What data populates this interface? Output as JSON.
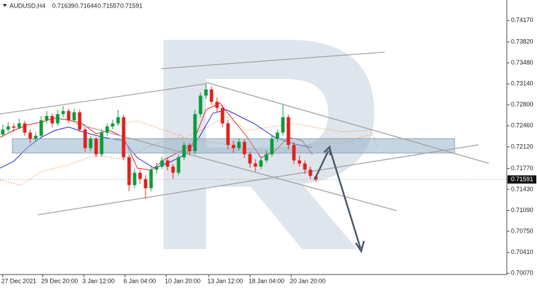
{
  "chart_data": {
    "type": "candlestick",
    "title": "AUDUSD,H4",
    "x": [
      0,
      1,
      2,
      3,
      4,
      5,
      6,
      7,
      8,
      9,
      10,
      11,
      12,
      13,
      14,
      15,
      16,
      17,
      18,
      19,
      20,
      21,
      22,
      23,
      24,
      25,
      26,
      27,
      28,
      29,
      30,
      31,
      32,
      33,
      34,
      35,
      36,
      37,
      38,
      39,
      40,
      41,
      42,
      43,
      44,
      45,
      46,
      47,
      48,
      49,
      50,
      51,
      52,
      53,
      54,
      55,
      56,
      57
    ],
    "open": [
      0.7232,
      0.724,
      0.7245,
      0.7243,
      0.725,
      0.7235,
      0.7225,
      0.723,
      0.7255,
      0.7262,
      0.725,
      0.7265,
      0.727,
      0.7255,
      0.7268,
      0.724,
      0.721,
      0.7225,
      0.72,
      0.7235,
      0.7245,
      0.725,
      0.726,
      0.7195,
      0.715,
      0.717,
      0.716,
      0.7145,
      0.7175,
      0.718,
      0.719,
      0.718,
      0.717,
      0.7195,
      0.7215,
      0.7205,
      0.7265,
      0.7295,
      0.7305,
      0.7285,
      0.7275,
      0.725,
      0.7215,
      0.721,
      0.722,
      0.72,
      0.7185,
      0.718,
      0.719,
      0.72,
      0.7225,
      0.7235,
      0.726,
      0.7215,
      0.719,
      0.7185,
      0.7175,
      0.71639
    ],
    "high": [
      0.7248,
      0.7252,
      0.725,
      0.7258,
      0.7254,
      0.724,
      0.7236,
      0.7262,
      0.727,
      0.7266,
      0.7272,
      0.7278,
      0.7274,
      0.7274,
      0.7272,
      0.7244,
      0.723,
      0.7228,
      0.724,
      0.725,
      0.7256,
      0.7272,
      0.7264,
      0.72,
      0.7176,
      0.7174,
      0.7166,
      0.718,
      0.7186,
      0.7196,
      0.7194,
      0.7184,
      0.72,
      0.722,
      0.7218,
      0.7272,
      0.73,
      0.7315,
      0.731,
      0.7292,
      0.728,
      0.7256,
      0.7222,
      0.7226,
      0.7224,
      0.7204,
      0.7192,
      0.7196,
      0.7206,
      0.723,
      0.724,
      0.728,
      0.7264,
      0.722,
      0.7198,
      0.719,
      0.718,
      0.71644
    ],
    "low": [
      0.7228,
      0.7236,
      0.7236,
      0.724,
      0.723,
      0.7218,
      0.722,
      0.7226,
      0.725,
      0.7244,
      0.7246,
      0.726,
      0.725,
      0.7252,
      0.7236,
      0.7204,
      0.7205,
      0.7195,
      0.7196,
      0.723,
      0.724,
      0.7246,
      0.719,
      0.714,
      0.7145,
      0.7152,
      0.7128,
      0.714,
      0.7168,
      0.7176,
      0.7174,
      0.716,
      0.7166,
      0.719,
      0.7198,
      0.72,
      0.726,
      0.729,
      0.728,
      0.7268,
      0.7244,
      0.7208,
      0.7202,
      0.7206,
      0.7194,
      0.7178,
      0.7172,
      0.7176,
      0.7186,
      0.7196,
      0.722,
      0.723,
      0.7208,
      0.7184,
      0.718,
      0.7168,
      0.716,
      0.71557
    ],
    "close": [
      0.724,
      0.7245,
      0.7243,
      0.725,
      0.7235,
      0.7225,
      0.723,
      0.7255,
      0.7262,
      0.725,
      0.7265,
      0.727,
      0.7255,
      0.7268,
      0.724,
      0.721,
      0.7225,
      0.72,
      0.7235,
      0.7245,
      0.725,
      0.726,
      0.7195,
      0.715,
      0.717,
      0.716,
      0.7145,
      0.7175,
      0.718,
      0.719,
      0.718,
      0.717,
      0.7195,
      0.7215,
      0.7205,
      0.7265,
      0.7295,
      0.7305,
      0.7285,
      0.7275,
      0.725,
      0.7215,
      0.721,
      0.722,
      0.72,
      0.7185,
      0.718,
      0.719,
      0.72,
      0.7225,
      0.7235,
      0.726,
      0.7215,
      0.719,
      0.7185,
      0.7175,
      0.7165,
      0.71591
    ],
    "up_color": "#0a9b3c",
    "down_color": "#e0201b",
    "xlim": [
      -0.5,
      91.75
    ],
    "xticks": [
      {
        "value": 0,
        "label": "27 Dec 2021"
      },
      {
        "value": 7.25,
        "label": "29 Dec 20:00"
      },
      {
        "value": 14.75,
        "label": "3 Jan 12:00"
      },
      {
        "value": 22.25,
        "label": "6 Jan 04:00"
      },
      {
        "value": 29.75,
        "label": "10 Jan 20:00"
      },
      {
        "value": 37.5,
        "label": "13 Jan 12:00"
      },
      {
        "value": 45,
        "label": "18 Jan 04:00"
      },
      {
        "value": 52.5,
        "label": "20 Jan 20:00"
      }
    ],
    "ylim": [
      0.7005,
      0.745
    ],
    "yticks": [
      {
        "value": 0.7417,
        "label": "0.74170"
      },
      {
        "value": 0.7382,
        "label": "0.73820"
      },
      {
        "value": 0.7348,
        "label": "0.73480"
      },
      {
        "value": 0.7314,
        "label": "0.73140"
      },
      {
        "value": 0.728,
        "label": "0.72800"
      },
      {
        "value": 0.7246,
        "label": "0.72460"
      },
      {
        "value": 0.7212,
        "label": "0.72120"
      },
      {
        "value": 0.7177,
        "label": "0.71770"
      },
      {
        "value": 0.7143,
        "label": "0.71430"
      },
      {
        "value": 0.7109,
        "label": "0.71090"
      },
      {
        "value": 0.7075,
        "label": "0.70750"
      },
      {
        "value": 0.7041,
        "label": "0.70410"
      },
      {
        "value": 0.7007,
        "label": "0.70070"
      }
    ]
  }
}
